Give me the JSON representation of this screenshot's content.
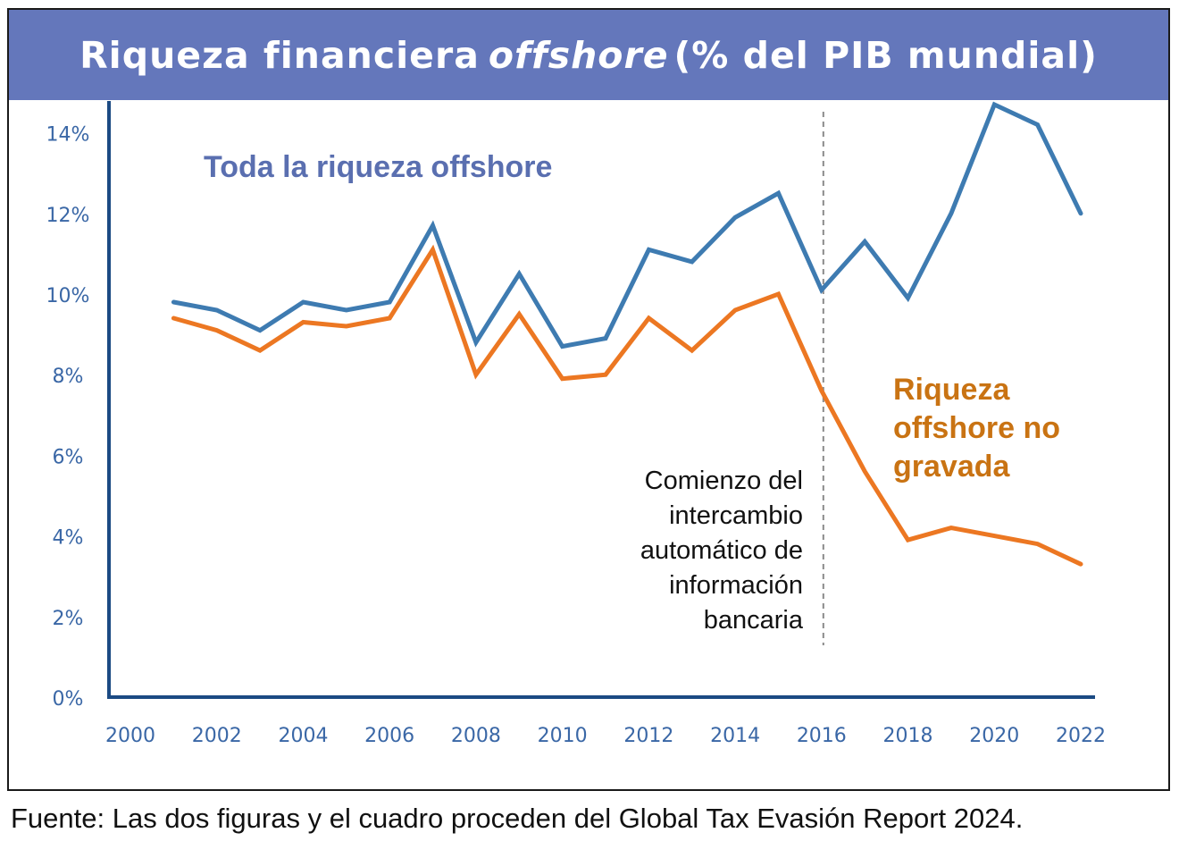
{
  "title": {
    "part1": "Riqueza financiera",
    "part_italic": "offshore",
    "part2": "(% del PIB mundial)"
  },
  "source": "Fuente: Las dos figuras y el cuadro proceden del Global Tax Evasión Report 2024.",
  "colors": {
    "title_bg": "#6477bb",
    "axis": "#1b4a83",
    "tick_text": "#3a67a6",
    "blue_series": "#3e7bb1",
    "orange_series": "#ec7722",
    "blue_label": "#5a6fb0",
    "orange_label": "#c97313"
  },
  "chart_data": {
    "type": "line",
    "x_ticks": [
      "2000",
      "2002",
      "2004",
      "2006",
      "2008",
      "2010",
      "2012",
      "2014",
      "2016",
      "2018",
      "2020",
      "2022"
    ],
    "y_ticks": [
      "0%",
      "2%",
      "4%",
      "6%",
      "8%",
      "10%",
      "12%",
      "14%"
    ],
    "xlim": [
      2000,
      2022
    ],
    "ylim": [
      0,
      14.5
    ],
    "grid": false,
    "series": [
      {
        "name": "Toda la riqueza offshore",
        "color": "#3e7bb1",
        "x": [
          2001,
          2002,
          2003,
          2004,
          2005,
          2006,
          2007,
          2008,
          2009,
          2010,
          2011,
          2012,
          2013,
          2014,
          2015,
          2016,
          2017,
          2018,
          2019,
          2020,
          2021,
          2022
        ],
        "y": [
          9.8,
          9.6,
          9.1,
          9.8,
          9.6,
          9.8,
          11.7,
          8.8,
          10.5,
          8.7,
          8.9,
          11.1,
          10.8,
          11.9,
          12.5,
          10.1,
          11.3,
          9.9,
          12.0,
          14.7,
          14.2,
          12.0
        ]
      },
      {
        "name": "Riqueza offshore no gravada",
        "color": "#ec7722",
        "x": [
          2001,
          2002,
          2003,
          2004,
          2005,
          2006,
          2007,
          2008,
          2009,
          2010,
          2011,
          2012,
          2013,
          2014,
          2015,
          2016,
          2017,
          2018,
          2019,
          2020,
          2021,
          2022
        ],
        "y": [
          9.4,
          9.1,
          8.6,
          9.3,
          9.2,
          9.4,
          11.1,
          8.0,
          9.5,
          7.9,
          8.0,
          9.4,
          8.6,
          9.6,
          10.0,
          7.6,
          5.6,
          3.9,
          4.2,
          4.0,
          3.8,
          3.3
        ]
      }
    ],
    "labels": {
      "blue": "Toda la riqueza offshore",
      "orange": [
        "Riqueza",
        "offshore no",
        "gravada"
      ]
    },
    "annotation": {
      "x": 2016,
      "lines": [
        "Comienzo del",
        "intercambio",
        "automático de",
        "información",
        "bancaria"
      ]
    }
  }
}
